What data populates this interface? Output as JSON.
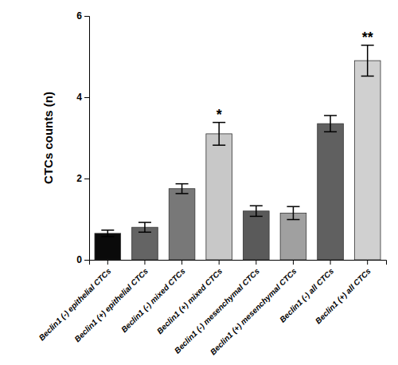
{
  "chart_data": {
    "type": "bar",
    "categories": [
      "Beclin1 (-) epithelial CTCs",
      "Beclin1 (+) epithelial CTCs",
      "Beclin1 (-) mixed CTCs",
      "Beclin1 (+) mixed CTCs",
      "Beclin1 (-) mesenchymal CTCs",
      "Beclin1 (+) mesenchymal CTCs",
      "Beclin1 (-) all CTCs",
      "Beclin1 (+) all CTCs"
    ],
    "values": [
      0.65,
      0.8,
      1.75,
      3.1,
      1.2,
      1.15,
      3.35,
      4.9
    ],
    "errors": [
      0.08,
      0.12,
      0.12,
      0.28,
      0.13,
      0.16,
      0.2,
      0.38
    ],
    "colors": [
      "#0a0a0a",
      "#646464",
      "#787878",
      "#c8c8c8",
      "#5a5a5a",
      "#a0a0a0",
      "#606060",
      "#d0d0d0"
    ],
    "annotations": [
      null,
      null,
      null,
      "*",
      null,
      null,
      null,
      "**"
    ],
    "ylabel": "CTCs counts (n)",
    "ylim": [
      0,
      6
    ],
    "yticks": [
      0,
      2,
      4,
      6
    ],
    "grid": false
  }
}
